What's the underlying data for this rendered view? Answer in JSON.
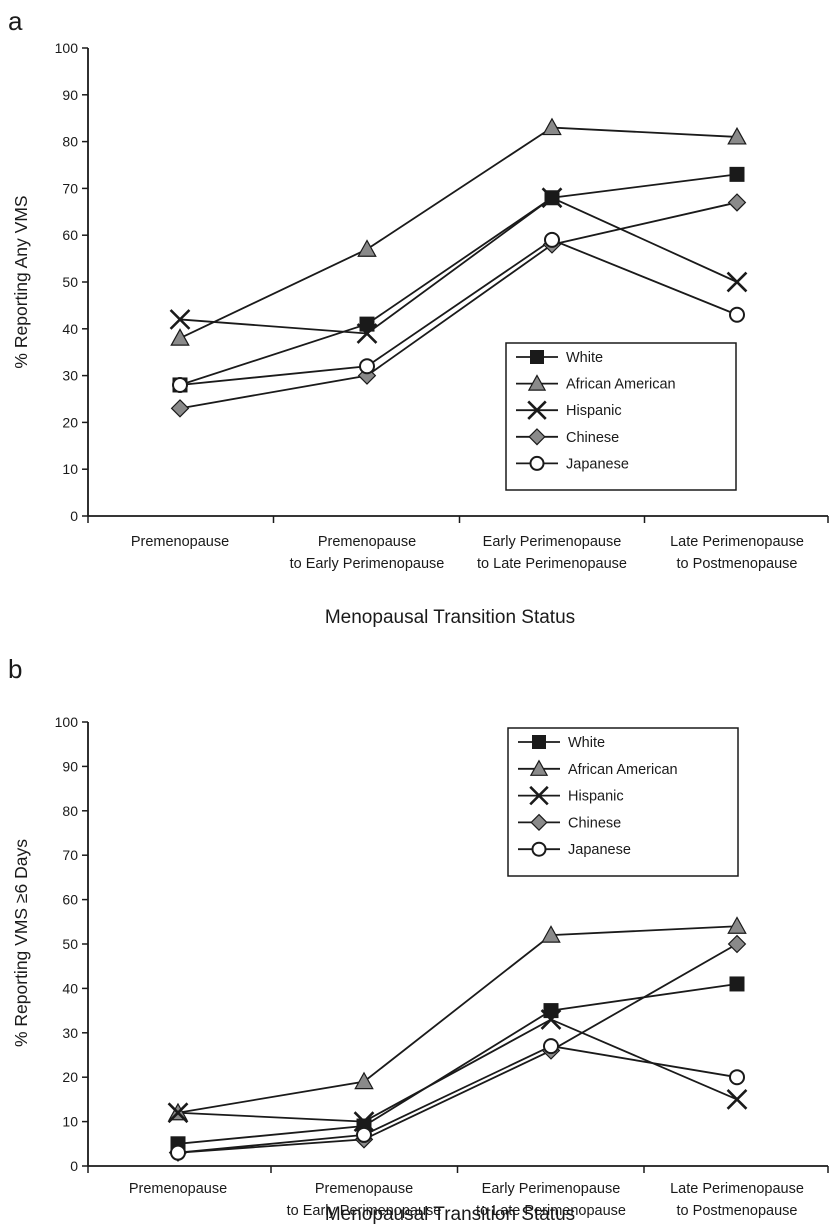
{
  "chart_data": [
    {
      "panel": "a",
      "type": "line",
      "categories": [
        [
          "Premenopause"
        ],
        [
          "Premenopause",
          "to Early Perimenopause"
        ],
        [
          "Early Perimenopause",
          "to Late Perimenopause"
        ],
        [
          "Late Perimenopause",
          "to Postmenopause"
        ]
      ],
      "ylabel": "% Reporting Any VMS",
      "xlabel": "Menopausal Transition Status",
      "ylim": [
        0,
        100
      ],
      "yticks": [
        0,
        10,
        20,
        30,
        40,
        50,
        60,
        70,
        80,
        90,
        100
      ],
      "legend_position": "lower-right",
      "grid": false,
      "series": [
        {
          "name": "White",
          "marker": "square",
          "values": [
            28,
            41,
            68,
            73
          ]
        },
        {
          "name": "African American",
          "marker": "triangle",
          "values": [
            38,
            57,
            83,
            81
          ]
        },
        {
          "name": "Hispanic",
          "marker": "x",
          "values": [
            42,
            39,
            68,
            50
          ]
        },
        {
          "name": "Chinese",
          "marker": "diamond",
          "values": [
            23,
            30,
            58,
            67
          ]
        },
        {
          "name": "Japanese",
          "marker": "circle",
          "values": [
            28,
            32,
            59,
            43
          ]
        }
      ]
    },
    {
      "panel": "b",
      "type": "line",
      "categories": [
        [
          "Premenopause"
        ],
        [
          "Premenopause",
          "to Early Perimenopause"
        ],
        [
          "Early Perimenopause",
          "to Late Perimenopause"
        ],
        [
          "Late Perimenopause",
          "to Postmenopause"
        ]
      ],
      "ylabel": "% Reporting VMS ≥6 Days",
      "xlabel": "Menopausal Transition Status",
      "ylim": [
        0,
        100
      ],
      "yticks": [
        0,
        10,
        20,
        30,
        40,
        50,
        60,
        70,
        80,
        90,
        100
      ],
      "legend_position": "upper-right",
      "grid": false,
      "series": [
        {
          "name": "White",
          "marker": "square",
          "values": [
            5,
            9,
            35,
            41
          ]
        },
        {
          "name": "African American",
          "marker": "triangle",
          "values": [
            12,
            19,
            52,
            54
          ]
        },
        {
          "name": "Hispanic",
          "marker": "x",
          "values": [
            12,
            10,
            33,
            15
          ]
        },
        {
          "name": "Chinese",
          "marker": "diamond",
          "values": [
            3,
            6,
            26,
            50
          ]
        },
        {
          "name": "Japanese",
          "marker": "circle",
          "values": [
            3,
            7,
            27,
            20
          ]
        }
      ]
    }
  ]
}
